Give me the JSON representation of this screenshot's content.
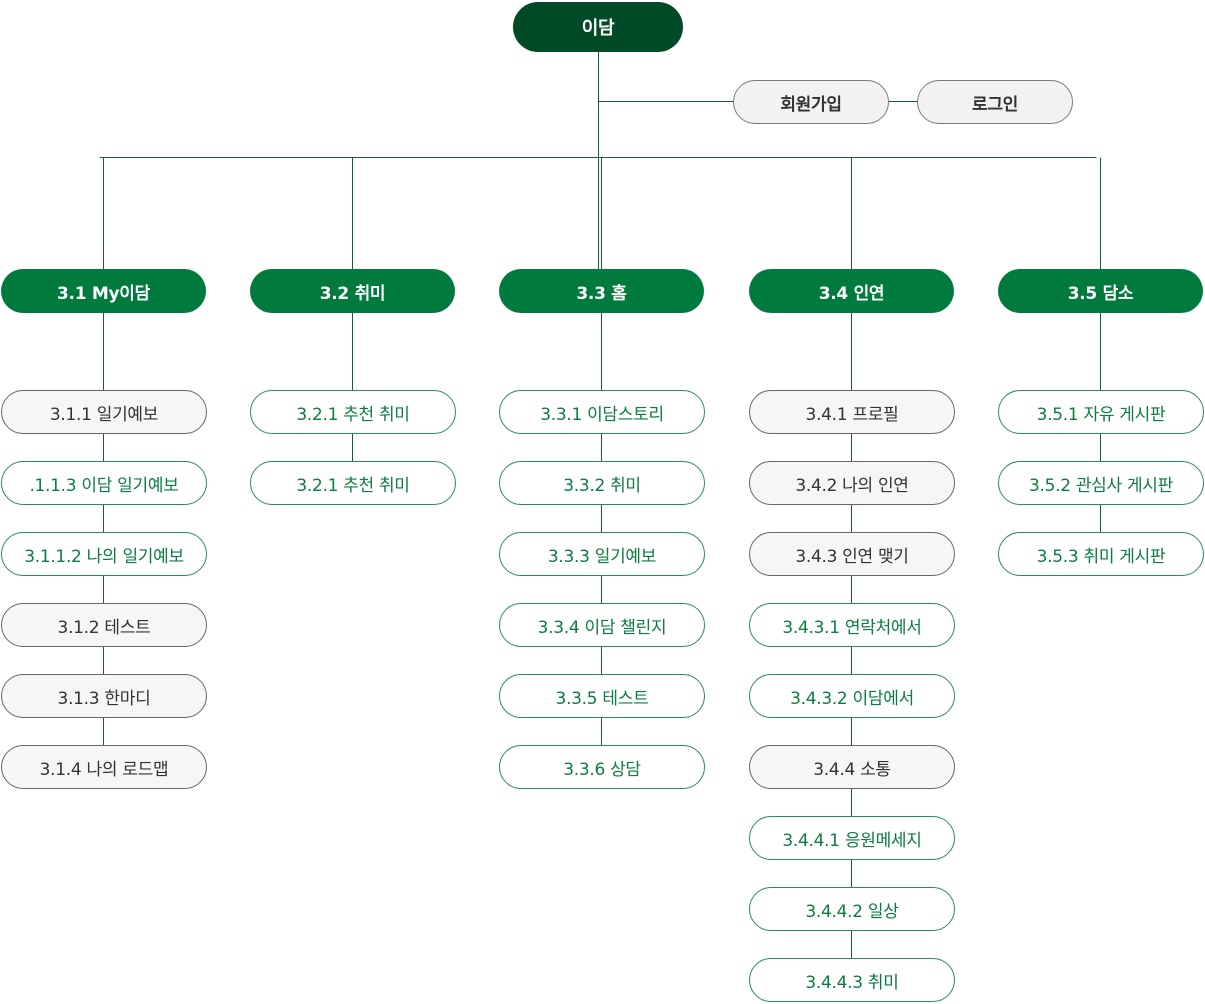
{
  "root": {
    "label": "이담"
  },
  "auth": {
    "signup": "회원가입",
    "login": "로그인"
  },
  "sections": [
    {
      "label": "3.1 My이담",
      "items": [
        {
          "label": "3.1.1 일기예보",
          "style": "gray"
        },
        {
          "label": ".1.1.3 이담 일기예보",
          "style": "green"
        },
        {
          "label": "3.1.1.2 나의 일기예보",
          "style": "green"
        },
        {
          "label": "3.1.2 테스트",
          "style": "gray"
        },
        {
          "label": "3.1.3 한마디",
          "style": "gray"
        },
        {
          "label": "3.1.4 나의 로드맵",
          "style": "gray"
        }
      ]
    },
    {
      "label": "3.2 취미",
      "items": [
        {
          "label": "3.2.1 추천 취미",
          "style": "green"
        },
        {
          "label": "3.2.1 추천 취미",
          "style": "green"
        }
      ]
    },
    {
      "label": "3.3 홈",
      "items": [
        {
          "label": "3.3.1 이담스토리",
          "style": "green"
        },
        {
          "label": "3.3.2 취미",
          "style": "green"
        },
        {
          "label": "3.3.3 일기예보",
          "style": "green"
        },
        {
          "label": "3.3.4 이담 챌린지",
          "style": "green"
        },
        {
          "label": "3.3.5 테스트",
          "style": "green"
        },
        {
          "label": "3.3.6 상담",
          "style": "green"
        }
      ]
    },
    {
      "label": "3.4 인연",
      "items": [
        {
          "label": "3.4.1 프로필",
          "style": "gray"
        },
        {
          "label": "3.4.2 나의 인연",
          "style": "gray"
        },
        {
          "label": "3.4.3 인연 맺기",
          "style": "gray"
        },
        {
          "label": "3.4.3.1 연락처에서",
          "style": "green"
        },
        {
          "label": "3.4.3.2 이담에서",
          "style": "green"
        },
        {
          "label": "3.4.4 소통",
          "style": "gray"
        },
        {
          "label": "3.4.4.1 응원메세지",
          "style": "green"
        },
        {
          "label": "3.4.4.2 일상",
          "style": "green"
        },
        {
          "label": "3.4.4.3 취미",
          "style": "green"
        }
      ]
    },
    {
      "label": "3.5 담소",
      "items": [
        {
          "label": "3.5.1 자유 게시판",
          "style": "green"
        },
        {
          "label": "3.5.2 관심사 게시판",
          "style": "green"
        },
        {
          "label": "3.5.3 취미 게시판",
          "style": "green"
        }
      ]
    }
  ],
  "colors": {
    "root": "#014a27",
    "section": "#007b3d",
    "line": "#1b5a3a",
    "greenText": "#0b7d3e",
    "grayFill": "#f6f6f6"
  }
}
